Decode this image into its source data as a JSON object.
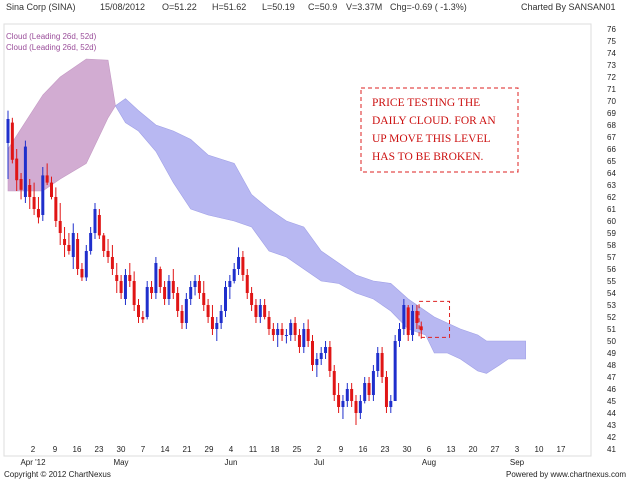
{
  "header": {
    "symbol": "Sina Corp (SINA)",
    "date": "15/08/2012",
    "open": "O=51.22",
    "high": "H=51.62",
    "low": "L=50.19",
    "close": "C=50.9",
    "volume": "V=3.37M",
    "change": "Chg=-0.69 ( -1.3%)",
    "charted_by": "Charted By SANSAN01"
  },
  "legend": [
    "Cloud (Leading 26d, 52d)",
    "Cloud (Leading 26d, 52d)"
  ],
  "annotation": {
    "lines": [
      "PRICE TESTING THE",
      "DAILY CLOUD. FOR AN",
      "UP MOVE THIS LEVEL",
      "HAS TO BE BROKEN."
    ]
  },
  "footer": {
    "copyright": "Copyright © 2012 ChartNexus",
    "powered": "Powered by www.chartnexus.com"
  },
  "colors": {
    "up": "#1f2fcc",
    "down": "#e01515",
    "cloud_bull": "#b8b8f2",
    "cloud_bear": "#d2acd2",
    "annotation": "#cc1111"
  },
  "chart_data": {
    "type": "candlestick",
    "ylim": [
      41,
      76
    ],
    "y_ticks": [
      41,
      42,
      43,
      44,
      45,
      46,
      47,
      48,
      49,
      50,
      51,
      52,
      53,
      54,
      55,
      56,
      57,
      58,
      59,
      60,
      61,
      62,
      63,
      64,
      65,
      66,
      67,
      68,
      69,
      70,
      71,
      72,
      73,
      74,
      75,
      76
    ],
    "x_day_labels": [
      "2",
      "9",
      "16",
      "23",
      "30",
      "7",
      "14",
      "21",
      "29",
      "4",
      "11",
      "18",
      "25",
      "2",
      "9",
      "16",
      "23",
      "30",
      "6",
      "13",
      "20",
      "27",
      "3",
      "10",
      "17"
    ],
    "x_month_labels": [
      "Apr '12",
      "May",
      "Jun",
      "Jul",
      "Aug",
      "Sep"
    ],
    "candles": [
      {
        "o": 66.5,
        "h": 69.2,
        "l": 63.5,
        "c": 68.5
      },
      {
        "o": 68.2,
        "h": 68.6,
        "l": 64.8,
        "c": 65.1
      },
      {
        "o": 65.2,
        "h": 66.0,
        "l": 62.5,
        "c": 63.4
      },
      {
        "o": 63.5,
        "h": 64.0,
        "l": 61.8,
        "c": 62.6
      },
      {
        "o": 62.0,
        "h": 66.7,
        "l": 61.5,
        "c": 66.2
      },
      {
        "o": 63.0,
        "h": 63.5,
        "l": 61.0,
        "c": 62.0
      },
      {
        "o": 62.0,
        "h": 63.2,
        "l": 60.5,
        "c": 61.0
      },
      {
        "o": 61.0,
        "h": 62.0,
        "l": 59.8,
        "c": 60.3
      },
      {
        "o": 60.5,
        "h": 64.5,
        "l": 60.0,
        "c": 63.8
      },
      {
        "o": 63.8,
        "h": 64.8,
        "l": 63.0,
        "c": 63.2
      },
      {
        "o": 63.2,
        "h": 63.7,
        "l": 61.8,
        "c": 62.0
      },
      {
        "o": 62.0,
        "h": 62.8,
        "l": 59.5,
        "c": 60.0
      },
      {
        "o": 60.0,
        "h": 61.5,
        "l": 58.0,
        "c": 59.0
      },
      {
        "o": 58.5,
        "h": 59.5,
        "l": 57.0,
        "c": 58.0
      },
      {
        "o": 58.0,
        "h": 59.0,
        "l": 57.2,
        "c": 57.5
      },
      {
        "o": 57.0,
        "h": 59.8,
        "l": 56.0,
        "c": 59.0
      },
      {
        "o": 58.5,
        "h": 59.0,
        "l": 55.5,
        "c": 56.0
      },
      {
        "o": 56.0,
        "h": 56.5,
        "l": 55.0,
        "c": 55.3
      },
      {
        "o": 55.3,
        "h": 58.0,
        "l": 55.0,
        "c": 57.5
      },
      {
        "o": 57.5,
        "h": 59.5,
        "l": 57.2,
        "c": 59.0
      },
      {
        "o": 59.0,
        "h": 61.5,
        "l": 58.5,
        "c": 61.0
      },
      {
        "o": 60.5,
        "h": 61.0,
        "l": 58.5,
        "c": 58.8
      },
      {
        "o": 58.8,
        "h": 59.0,
        "l": 57.0,
        "c": 57.5
      },
      {
        "o": 57.5,
        "h": 58.5,
        "l": 56.5,
        "c": 57.0
      },
      {
        "o": 57.0,
        "h": 58.0,
        "l": 55.5,
        "c": 56.0
      },
      {
        "o": 55.5,
        "h": 56.5,
        "l": 54.0,
        "c": 55.0
      },
      {
        "o": 55.0,
        "h": 55.5,
        "l": 53.5,
        "c": 54.0
      },
      {
        "o": 53.5,
        "h": 56.0,
        "l": 53.0,
        "c": 55.5
      },
      {
        "o": 55.5,
        "h": 56.5,
        "l": 54.5,
        "c": 55.0
      },
      {
        "o": 55.0,
        "h": 55.8,
        "l": 52.5,
        "c": 53.0
      },
      {
        "o": 53.0,
        "h": 53.5,
        "l": 51.5,
        "c": 52.0
      },
      {
        "o": 52.0,
        "h": 52.5,
        "l": 51.5,
        "c": 51.8
      },
      {
        "o": 52.0,
        "h": 55.0,
        "l": 51.8,
        "c": 54.5
      },
      {
        "o": 54.5,
        "h": 55.0,
        "l": 53.5,
        "c": 54.0
      },
      {
        "o": 54.0,
        "h": 57.0,
        "l": 53.5,
        "c": 56.5
      },
      {
        "o": 56.0,
        "h": 56.2,
        "l": 54.0,
        "c": 54.5
      },
      {
        "o": 54.5,
        "h": 55.0,
        "l": 53.0,
        "c": 53.5
      },
      {
        "o": 53.5,
        "h": 55.5,
        "l": 53.0,
        "c": 55.0
      },
      {
        "o": 55.0,
        "h": 56.0,
        "l": 53.5,
        "c": 54.0
      },
      {
        "o": 54.0,
        "h": 54.5,
        "l": 52.0,
        "c": 52.5
      },
      {
        "o": 52.5,
        "h": 53.0,
        "l": 51.0,
        "c": 51.5
      },
      {
        "o": 51.5,
        "h": 54.0,
        "l": 51.0,
        "c": 53.5
      },
      {
        "o": 53.5,
        "h": 55.0,
        "l": 53.0,
        "c": 54.5
      },
      {
        "o": 54.5,
        "h": 55.5,
        "l": 53.8,
        "c": 55.0
      },
      {
        "o": 55.0,
        "h": 55.5,
        "l": 53.5,
        "c": 54.0
      },
      {
        "o": 54.0,
        "h": 55.0,
        "l": 52.5,
        "c": 53.0
      },
      {
        "o": 53.0,
        "h": 53.5,
        "l": 51.5,
        "c": 52.0
      },
      {
        "o": 52.0,
        "h": 53.0,
        "l": 50.5,
        "c": 51.0
      },
      {
        "o": 51.0,
        "h": 52.0,
        "l": 50.0,
        "c": 51.5
      },
      {
        "o": 51.5,
        "h": 53.0,
        "l": 51.0,
        "c": 52.5
      },
      {
        "o": 52.5,
        "h": 55.0,
        "l": 52.0,
        "c": 54.5
      },
      {
        "o": 54.5,
        "h": 55.5,
        "l": 53.5,
        "c": 55.0
      },
      {
        "o": 55.0,
        "h": 56.5,
        "l": 54.8,
        "c": 56.0
      },
      {
        "o": 56.0,
        "h": 57.8,
        "l": 55.5,
        "c": 57.0
      },
      {
        "o": 57.0,
        "h": 57.5,
        "l": 55.0,
        "c": 55.5
      },
      {
        "o": 55.5,
        "h": 56.0,
        "l": 53.5,
        "c": 54.0
      },
      {
        "o": 54.0,
        "h": 54.5,
        "l": 52.5,
        "c": 53.0
      },
      {
        "o": 53.0,
        "h": 53.5,
        "l": 51.5,
        "c": 52.0
      },
      {
        "o": 52.0,
        "h": 53.5,
        "l": 51.5,
        "c": 53.0
      },
      {
        "o": 53.0,
        "h": 53.5,
        "l": 51.8,
        "c": 52.0
      },
      {
        "o": 52.0,
        "h": 52.5,
        "l": 50.5,
        "c": 51.0
      },
      {
        "o": 51.0,
        "h": 51.5,
        "l": 50.0,
        "c": 50.5
      },
      {
        "o": 50.5,
        "h": 51.5,
        "l": 49.5,
        "c": 51.0
      },
      {
        "o": 51.0,
        "h": 51.5,
        "l": 50.0,
        "c": 50.5
      },
      {
        "o": 50.5,
        "h": 51.0,
        "l": 49.8,
        "c": 50.5
      },
      {
        "o": 50.5,
        "h": 51.8,
        "l": 50.0,
        "c": 51.5
      },
      {
        "o": 51.5,
        "h": 52.0,
        "l": 50.0,
        "c": 50.5
      },
      {
        "o": 50.5,
        "h": 51.0,
        "l": 49.0,
        "c": 49.5
      },
      {
        "o": 49.5,
        "h": 51.5,
        "l": 49.0,
        "c": 51.0
      },
      {
        "o": 51.0,
        "h": 51.8,
        "l": 49.5,
        "c": 50.0
      },
      {
        "o": 50.0,
        "h": 50.5,
        "l": 47.5,
        "c": 48.0
      },
      {
        "o": 48.0,
        "h": 49.0,
        "l": 47.0,
        "c": 48.5
      },
      {
        "o": 48.5,
        "h": 49.5,
        "l": 48.0,
        "c": 49.0
      },
      {
        "o": 49.0,
        "h": 50.0,
        "l": 48.5,
        "c": 49.5
      },
      {
        "o": 49.5,
        "h": 50.0,
        "l": 47.0,
        "c": 47.5
      },
      {
        "o": 47.5,
        "h": 48.0,
        "l": 45.0,
        "c": 45.5
      },
      {
        "o": 45.5,
        "h": 46.5,
        "l": 44.0,
        "c": 44.5
      },
      {
        "o": 44.5,
        "h": 45.5,
        "l": 43.5,
        "c": 45.0
      },
      {
        "o": 45.0,
        "h": 46.5,
        "l": 44.5,
        "c": 46.0
      },
      {
        "o": 46.0,
        "h": 46.5,
        "l": 44.5,
        "c": 45.0
      },
      {
        "o": 45.0,
        "h": 45.5,
        "l": 43.0,
        "c": 44.0
      },
      {
        "o": 44.0,
        "h": 45.5,
        "l": 43.5,
        "c": 45.0
      },
      {
        "o": 45.0,
        "h": 47.0,
        "l": 44.8,
        "c": 46.5
      },
      {
        "o": 46.5,
        "h": 47.0,
        "l": 45.0,
        "c": 45.5
      },
      {
        "o": 45.5,
        "h": 48.0,
        "l": 45.0,
        "c": 47.5
      },
      {
        "o": 47.5,
        "h": 49.5,
        "l": 47.0,
        "c": 49.0
      },
      {
        "o": 49.0,
        "h": 49.5,
        "l": 46.5,
        "c": 47.0
      },
      {
        "o": 47.0,
        "h": 47.5,
        "l": 44.0,
        "c": 44.5
      },
      {
        "o": 44.5,
        "h": 45.5,
        "l": 44.0,
        "c": 45.0
      },
      {
        "o": 45.0,
        "h": 50.5,
        "l": 45.0,
        "c": 50.0
      },
      {
        "o": 50.0,
        "h": 51.5,
        "l": 49.5,
        "c": 51.0
      },
      {
        "o": 51.0,
        "h": 53.5,
        "l": 50.5,
        "c": 53.0
      },
      {
        "o": 52.8,
        "h": 53.0,
        "l": 50.0,
        "c": 50.5
      },
      {
        "o": 50.5,
        "h": 53.0,
        "l": 50.0,
        "c": 52.5
      },
      {
        "o": 52.5,
        "h": 53.0,
        "l": 51.0,
        "c": 51.5
      },
      {
        "o": 51.22,
        "h": 51.62,
        "l": 50.19,
        "c": 50.9
      }
    ],
    "cloud": {
      "bear": [
        {
          "i": 0,
          "top": 66,
          "bot": 62.5
        },
        {
          "i": 8,
          "top": 70.5,
          "bot": 62.5
        },
        {
          "i": 12,
          "top": 72.0,
          "bot": 63.5
        },
        {
          "i": 18,
          "top": 73.5,
          "bot": 64.8
        },
        {
          "i": 23,
          "top": 73.4,
          "bot": 68.6
        },
        {
          "i": 24.7,
          "top": 69.6,
          "bot": 69.6
        }
      ],
      "bull": [
        {
          "i": 24.7,
          "top": 69.6,
          "bot": 69.6
        },
        {
          "i": 27,
          "top": 70.2,
          "bot": 68.2
        },
        {
          "i": 30,
          "top": 69.2,
          "bot": 67.5
        },
        {
          "i": 34,
          "top": 68.0,
          "bot": 65.8
        },
        {
          "i": 38,
          "top": 67.5,
          "bot": 63.2
        },
        {
          "i": 42,
          "top": 66.8,
          "bot": 61.0
        },
        {
          "i": 46,
          "top": 65.5,
          "bot": 60.5
        },
        {
          "i": 52,
          "top": 64.8,
          "bot": 60.0
        },
        {
          "i": 56,
          "top": 62.2,
          "bot": 59.5
        },
        {
          "i": 60,
          "top": 61.0,
          "bot": 57.5
        },
        {
          "i": 64,
          "top": 60.0,
          "bot": 57.0
        },
        {
          "i": 68,
          "top": 59.5,
          "bot": 56.0
        },
        {
          "i": 72,
          "top": 57.5,
          "bot": 55.0
        },
        {
          "i": 76,
          "top": 56.5,
          "bot": 54.8
        },
        {
          "i": 80,
          "top": 55.5,
          "bot": 54.0
        },
        {
          "i": 84,
          "top": 55.0,
          "bot": 53.5
        },
        {
          "i": 88,
          "top": 54.8,
          "bot": 52.5
        },
        {
          "i": 92,
          "top": 53.5,
          "bot": 51.0
        },
        {
          "i": 96,
          "top": 52.5,
          "bot": 50.5
        },
        {
          "i": 98,
          "top": 52.0,
          "bot": 49.0
        },
        {
          "i": 101,
          "top": 51.5,
          "bot": 49.0
        },
        {
          "i": 104,
          "top": 51.0,
          "bot": 48.5
        },
        {
          "i": 108,
          "top": 50.5,
          "bot": 47.5
        },
        {
          "i": 110,
          "top": 50.0,
          "bot": 47.3
        },
        {
          "i": 113,
          "top": 50.0,
          "bot": 48.0
        },
        {
          "i": 115,
          "top": 50.0,
          "bot": 48.5
        },
        {
          "i": 119,
          "top": 50.0,
          "bot": 48.5
        }
      ]
    },
    "highlight": {
      "i_from": 94.5,
      "i_to": 101.5,
      "top": 53.3,
      "bot": 50.3
    }
  }
}
